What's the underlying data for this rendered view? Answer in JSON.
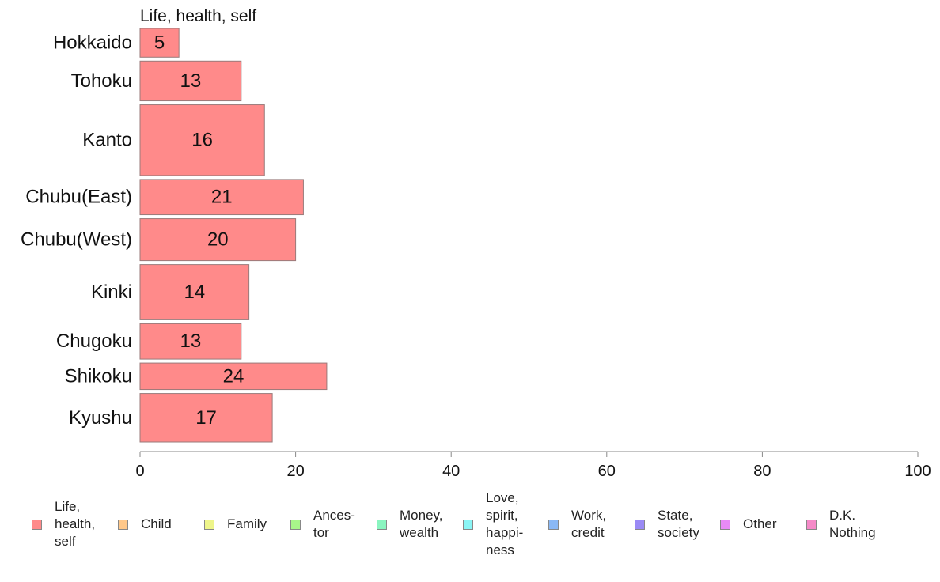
{
  "chart_data": {
    "type": "bar",
    "orientation": "horizontal",
    "title": "",
    "series": [
      {
        "name": "Life, health, self",
        "color": "#ff8a8a",
        "values": [
          5,
          13,
          16,
          21,
          20,
          14,
          13,
          24,
          17
        ]
      }
    ],
    "categories": [
      "Hokkaido",
      "Tohoku",
      "Kanto",
      "Chubu(East)",
      "Chubu(West)",
      "Kinki",
      "Chugoku",
      "Shikoku",
      "Kyushu"
    ],
    "category_weights": [
      0.65,
      0.9,
      1.6,
      0.8,
      0.95,
      1.25,
      0.8,
      0.6,
      1.1
    ],
    "xlim": [
      0,
      100
    ],
    "xticks": [
      0,
      20,
      40,
      60,
      80,
      100
    ],
    "xlabel": "",
    "ylabel": "",
    "grid": false,
    "legend_position": "bottom",
    "legend": [
      {
        "label": "Life,\nhealth,\nself",
        "color": "#ff8a8a"
      },
      {
        "label": "Child",
        "color": "#ffc88a"
      },
      {
        "label": "Family",
        "color": "#eef58a"
      },
      {
        "label": "Ances-\ntor",
        "color": "#a8f58a"
      },
      {
        "label": "Money,\nwealth",
        "color": "#8af5c0"
      },
      {
        "label": "Love,\nspirit,\nhappi-\nness",
        "color": "#8af5f5"
      },
      {
        "label": "Work,\ncredit",
        "color": "#8ab8f5"
      },
      {
        "label": "State,\nsociety",
        "color": "#9a8af5"
      },
      {
        "label": "Other",
        "color": "#e88af5"
      },
      {
        "label": "D.K.\nNothing",
        "color": "#f58ac8"
      }
    ]
  }
}
